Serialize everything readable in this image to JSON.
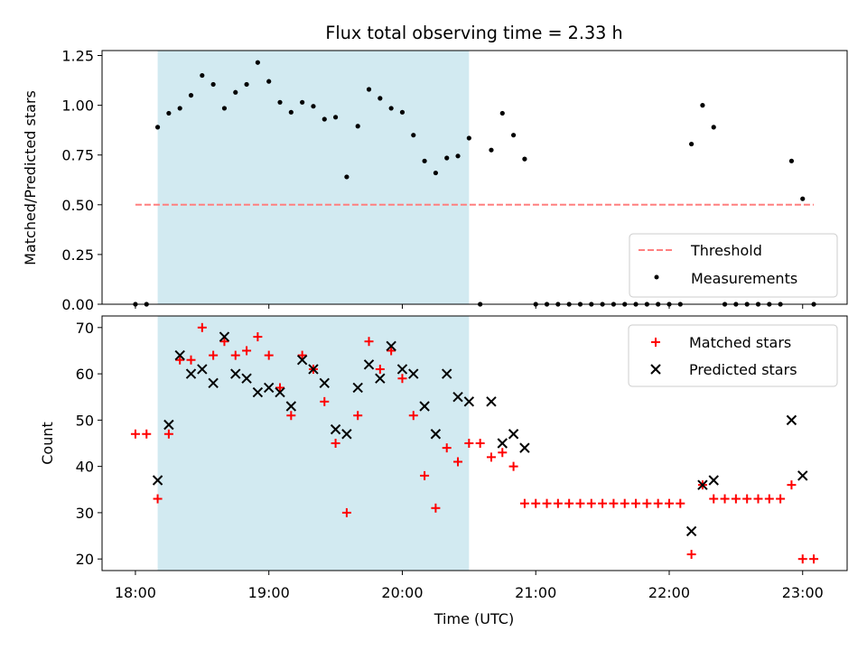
{
  "title": "Flux total observing time = 2.33 h",
  "colors": {
    "band": "#add8e6",
    "threshold": "#ff7f7f",
    "matched": "#ff0000",
    "predicted": "#000000",
    "measurement": "#000000"
  },
  "chart_data": [
    {
      "type": "scatter",
      "ylabel": "Matched/Predicted stars",
      "ylim": [
        0,
        1.275
      ],
      "yticks": [
        0.0,
        0.25,
        0.5,
        0.75,
        1.0,
        1.25
      ],
      "ytick_labels": [
        "0.00",
        "0.25",
        "0.50",
        "0.75",
        "1.00",
        "1.25"
      ],
      "legend_position": "bottom-right",
      "shaded_interval": [
        "18:10",
        "20:30"
      ],
      "threshold": {
        "name": "Threshold",
        "value": 0.5,
        "x_range": [
          "18:00",
          "23:05"
        ]
      },
      "series": [
        {
          "name": "Measurements",
          "x": [
            "18:00",
            "18:05",
            "18:10",
            "18:15",
            "18:20",
            "18:25",
            "18:30",
            "18:35",
            "18:40",
            "18:45",
            "18:50",
            "18:55",
            "19:00",
            "19:05",
            "19:10",
            "19:15",
            "19:20",
            "19:25",
            "19:30",
            "19:35",
            "19:40",
            "19:45",
            "19:50",
            "19:55",
            "20:00",
            "20:05",
            "20:10",
            "20:15",
            "20:20",
            "20:25",
            "20:30",
            "20:35",
            "20:40",
            "20:45",
            "20:50",
            "20:55",
            "21:00",
            "21:05",
            "21:10",
            "21:15",
            "21:20",
            "21:25",
            "21:30",
            "21:35",
            "21:40",
            "21:45",
            "21:50",
            "21:55",
            "22:00",
            "22:05",
            "22:10",
            "22:15",
            "22:20",
            "22:25",
            "22:30",
            "22:35",
            "22:40",
            "22:45",
            "22:50",
            "22:55",
            "23:00",
            "23:05"
          ],
          "y": [
            0.0,
            0.0,
            0.89,
            0.96,
            0.985,
            1.05,
            1.15,
            1.105,
            0.985,
            1.065,
            1.105,
            1.215,
            1.12,
            1.015,
            0.965,
            1.015,
            0.995,
            0.93,
            0.94,
            0.64,
            0.895,
            1.08,
            1.035,
            0.985,
            0.965,
            0.85,
            0.72,
            0.66,
            0.735,
            0.745,
            0.835,
            0.0,
            0.775,
            0.96,
            0.85,
            0.73,
            0.0,
            0.0,
            0.0,
            0.0,
            0.0,
            0.0,
            0.0,
            0.0,
            0.0,
            0.0,
            0.0,
            0.0,
            0.0,
            0.0,
            0.805,
            1.0,
            0.89,
            0.0,
            0.0,
            0.0,
            0.0,
            0.0,
            0.0,
            0.72,
            0.53,
            0.0
          ]
        }
      ]
    },
    {
      "type": "scatter",
      "xlabel": "Time (UTC)",
      "ylabel": "Count",
      "ylim": [
        17.5,
        72.5
      ],
      "yticks": [
        20,
        30,
        40,
        50,
        60,
        70
      ],
      "ytick_labels": [
        "20",
        "30",
        "40",
        "50",
        "60",
        "70"
      ],
      "xlim": [
        "17:45",
        "23:20"
      ],
      "xticks": [
        "18:00",
        "19:00",
        "20:00",
        "21:00",
        "22:00",
        "23:00"
      ],
      "xtick_labels": [
        "18:00",
        "19:00",
        "20:00",
        "21:00",
        "22:00",
        "23:00"
      ],
      "legend_position": "top-right",
      "shaded_interval": [
        "18:10",
        "20:30"
      ],
      "series": [
        {
          "name": "Matched stars",
          "x": [
            "18:00",
            "18:05",
            "18:10",
            "18:15",
            "18:20",
            "18:25",
            "18:30",
            "18:35",
            "18:40",
            "18:45",
            "18:50",
            "18:55",
            "19:00",
            "19:05",
            "19:10",
            "19:15",
            "19:20",
            "19:25",
            "19:30",
            "19:35",
            "19:40",
            "19:45",
            "19:50",
            "19:55",
            "20:00",
            "20:05",
            "20:10",
            "20:15",
            "20:20",
            "20:25",
            "20:30",
            "20:35",
            "20:40",
            "20:45",
            "20:50",
            "20:55",
            "21:00",
            "21:05",
            "21:10",
            "21:15",
            "21:20",
            "21:25",
            "21:30",
            "21:35",
            "21:40",
            "21:45",
            "21:50",
            "21:55",
            "22:00",
            "22:05",
            "22:10",
            "22:15",
            "22:20",
            "22:25",
            "22:30",
            "22:35",
            "22:40",
            "22:45",
            "22:50",
            "22:55",
            "23:00",
            "23:05"
          ],
          "y": [
            47,
            47,
            33,
            47,
            63,
            63,
            70,
            64,
            67,
            64,
            65,
            68,
            64,
            57,
            51,
            64,
            61,
            54,
            45,
            30,
            51,
            67,
            61,
            65,
            59,
            51,
            38,
            31,
            44,
            41,
            45,
            45,
            42,
            43,
            40,
            32,
            32,
            32,
            32,
            32,
            32,
            32,
            32,
            32,
            32,
            32,
            32,
            32,
            32,
            32,
            21,
            36,
            33,
            33,
            33,
            33,
            33,
            33,
            33,
            36,
            20,
            20
          ]
        },
        {
          "name": "Predicted stars",
          "x": [
            "18:10",
            "18:15",
            "18:20",
            "18:25",
            "18:30",
            "18:35",
            "18:40",
            "18:45",
            "18:50",
            "18:55",
            "19:00",
            "19:05",
            "19:10",
            "19:15",
            "19:20",
            "19:25",
            "19:30",
            "19:35",
            "19:40",
            "19:45",
            "19:50",
            "19:55",
            "20:00",
            "20:05",
            "20:10",
            "20:15",
            "20:20",
            "20:25",
            "20:30",
            "20:40",
            "20:45",
            "20:50",
            "20:55",
            "22:10",
            "22:15",
            "22:20",
            "22:55",
            "23:00"
          ],
          "y": [
            37,
            49,
            64,
            60,
            61,
            58,
            68,
            60,
            59,
            56,
            57,
            56,
            53,
            63,
            61,
            58,
            48,
            47,
            57,
            62,
            59,
            66,
            61,
            60,
            53,
            47,
            60,
            55,
            54,
            54,
            45,
            47,
            44,
            26,
            36,
            37,
            50,
            38
          ]
        }
      ]
    }
  ]
}
